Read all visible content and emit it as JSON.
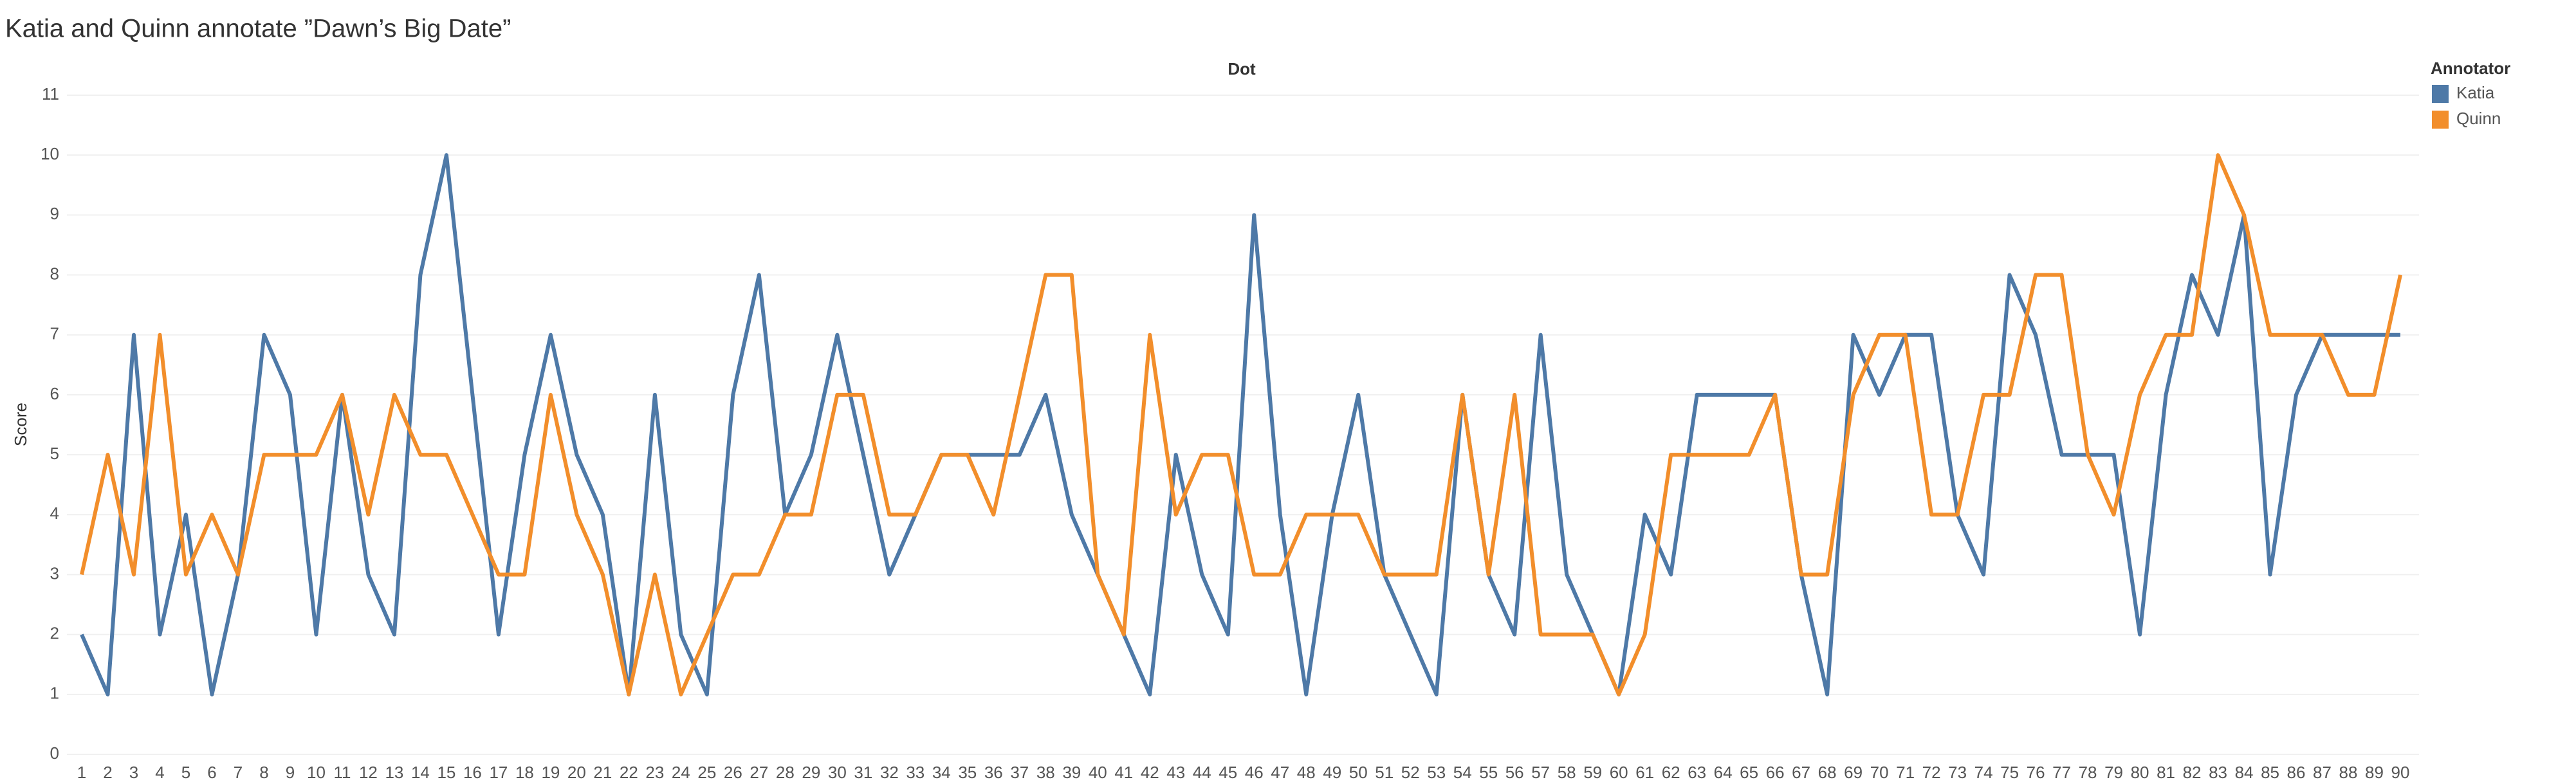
{
  "chart_data": {
    "type": "line",
    "title": "Katia and Quinn annotate ”Dawn’s Big Date”",
    "x_label": "Dot",
    "y_label": "Score",
    "legend_title": "Annotator",
    "categories": [
      "1",
      "2",
      "3",
      "4",
      "5",
      "6",
      "7",
      "8",
      "9",
      "10",
      "11",
      "12",
      "13",
      "14",
      "15",
      "16",
      "17",
      "18",
      "19",
      "20",
      "21",
      "22",
      "23",
      "24",
      "25",
      "26",
      "27",
      "28",
      "29",
      "30",
      "31",
      "32",
      "33",
      "34",
      "35",
      "36",
      "37",
      "38",
      "39",
      "40",
      "41",
      "42",
      "43",
      "44",
      "45",
      "46",
      "47",
      "48",
      "49",
      "50",
      "51",
      "52",
      "53",
      "54",
      "55",
      "56",
      "57",
      "58",
      "59",
      "60",
      "61",
      "62",
      "63",
      "64",
      "65",
      "66",
      "67",
      "68",
      "69",
      "70",
      "71",
      "72",
      "73",
      "74",
      "75",
      "76",
      "77",
      "78",
      "79",
      "80",
      "81",
      "82",
      "83",
      "84",
      "85",
      "86",
      "87",
      "88",
      "89",
      "90"
    ],
    "series": [
      {
        "name": "Katia",
        "color": "#4e79a7",
        "values": [
          2,
          1,
          7,
          2,
          4,
          1,
          3,
          7,
          6,
          2,
          6,
          3,
          2,
          8,
          10,
          6,
          2,
          5,
          7,
          5,
          4,
          1,
          6,
          2,
          1,
          6,
          8,
          4,
          5,
          7,
          5,
          3,
          4,
          5,
          5,
          5,
          5,
          6,
          4,
          3,
          2,
          1,
          5,
          3,
          2,
          9,
          4,
          1,
          4,
          6,
          3,
          2,
          1,
          6,
          3,
          2,
          7,
          3,
          2,
          1,
          4,
          3,
          6,
          6,
          6,
          6,
          3,
          1,
          7,
          6,
          7,
          7,
          4,
          3,
          8,
          7,
          5,
          5,
          5,
          2,
          6,
          8,
          7,
          9,
          3,
          6,
          7,
          7,
          7,
          7
        ]
      },
      {
        "name": "Quinn",
        "color": "#f28e2b",
        "values": [
          3,
          5,
          3,
          7,
          3,
          4,
          3,
          5,
          5,
          5,
          6,
          4,
          6,
          5,
          5,
          4,
          3,
          3,
          6,
          4,
          3,
          1,
          3,
          1,
          2,
          3,
          3,
          4,
          4,
          6,
          6,
          4,
          4,
          5,
          5,
          4,
          6,
          8,
          8,
          3,
          2,
          7,
          4,
          5,
          5,
          3,
          3,
          4,
          4,
          4,
          3,
          3,
          3,
          6,
          3,
          6,
          2,
          2,
          2,
          1,
          2,
          5,
          5,
          5,
          5,
          6,
          3,
          3,
          6,
          7,
          7,
          4,
          4,
          6,
          6,
          8,
          8,
          5,
          4,
          6,
          7,
          7,
          10,
          9,
          7,
          7,
          7,
          6,
          6,
          8
        ]
      }
    ],
    "ylim": [
      0,
      11
    ],
    "yticks": [
      0,
      1,
      2,
      3,
      4,
      5,
      6,
      7,
      8,
      9,
      10,
      11
    ],
    "grid": true
  }
}
